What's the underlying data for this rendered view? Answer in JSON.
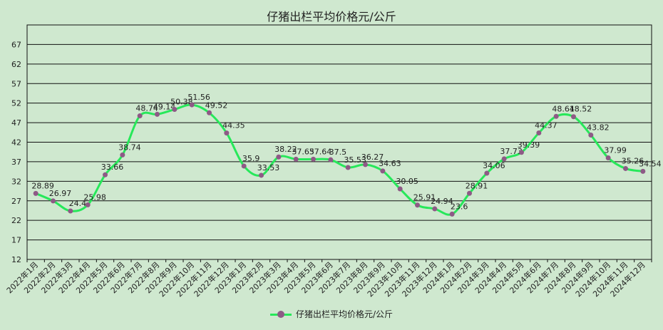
{
  "chart_data": {
    "type": "line",
    "title": "仔猪出栏平均价格元/公斤",
    "categories": [
      "2022年1月",
      "2022年2月",
      "2022年3月",
      "2022年4月",
      "2022年5月",
      "2022年6月",
      "2022年7月",
      "2022年8月",
      "2022年9月",
      "2022年10月",
      "2022年11月",
      "2022年12月",
      "2023年1月",
      "2023年2月",
      "2023年3月",
      "2023年4月",
      "2023年5月",
      "2023年6月",
      "2023年7月",
      "2023年8月",
      "2023年9月",
      "2023年10月",
      "2023年11月",
      "2023年12月",
      "2024年1月",
      "2024年2月",
      "2024年3月",
      "2024年4月",
      "2024年5月",
      "2024年6月",
      "2024年7月",
      "2024年8月",
      "2024年9月",
      "2024年10月",
      "2024年11月",
      "2024年12月"
    ],
    "series": [
      {
        "name": "仔猪出栏平均价格元/公斤",
        "values": [
          28.89,
          26.97,
          24.4,
          25.98,
          33.66,
          38.74,
          48.74,
          49.14,
          50.38,
          51.56,
          49.52,
          44.35,
          35.9,
          33.53,
          38.22,
          37.65,
          37.64,
          37.5,
          35.53,
          36.27,
          34.63,
          30.05,
          25.91,
          24.94,
          23.6,
          28.91,
          34.06,
          37.73,
          39.39,
          44.37,
          48.61,
          48.52,
          43.82,
          37.99,
          35.26,
          34.54
        ],
        "labels": [
          "28.89",
          "26.97",
          "24.4",
          "25.98",
          "33.66",
          "38.74",
          "48.74",
          "49.14",
          "50.38",
          "51.56",
          "49.52",
          "44.35",
          "35.9",
          "33.53",
          "38.22",
          "37.65",
          "37.64",
          "37.5",
          "35.53",
          "36.27",
          "34.63",
          "30.05",
          "25.91",
          "24.94",
          "23.6",
          "28.91",
          "34.06",
          "37.73",
          "39.39",
          "44.37",
          "48.61",
          "48.52",
          "43.82",
          "37.99",
          "35.26",
          "34.54"
        ],
        "line_color": "#27e85a",
        "marker_color": "#8e5a86"
      }
    ],
    "yticks": [
      "12",
      "17",
      "22",
      "27",
      "32",
      "37",
      "42",
      "47",
      "52",
      "57",
      "62",
      "67"
    ],
    "ylim": [
      12,
      72
    ],
    "grid": true,
    "legend_position": "bottom",
    "background_color": "#cfe8cf"
  }
}
